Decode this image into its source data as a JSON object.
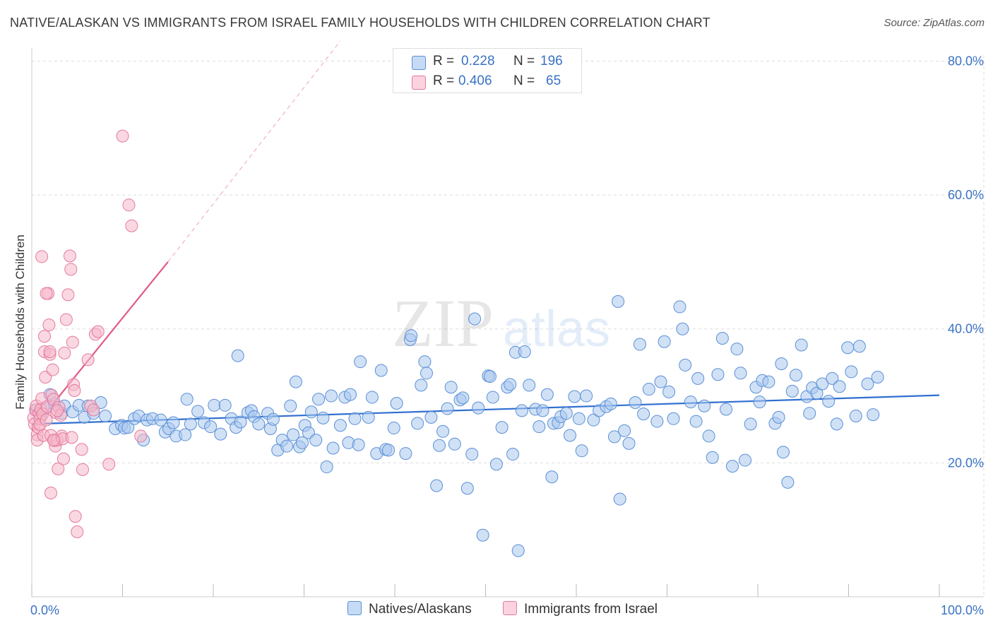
{
  "title": "NATIVE/ALASKAN VS IMMIGRANTS FROM ISRAEL FAMILY HOUSEHOLDS WITH CHILDREN CORRELATION CHART",
  "source": "Source: ZipAtlas.com",
  "watermark": {
    "zip": "ZIP",
    "atlas": "atlas"
  },
  "legend": {
    "r_label": "R =",
    "n_label": "N =",
    "series": [
      {
        "name": "Natives/Alaskans",
        "r": "0.228",
        "n": "196"
      },
      {
        "name": "Immigrants from Israel",
        "r": "0.406",
        "n": "65"
      }
    ]
  },
  "colors": {
    "blue_fill": "#aac8ee",
    "blue_stroke": "#5b8fd6",
    "blue_line": "#2f6fd0",
    "pink_fill": "#f5b8cb",
    "pink_stroke": "#e47a9c",
    "pink_line": "#e05a88",
    "axis_text": "#3a72c4",
    "grid": "#dddddd"
  },
  "chart_data": {
    "type": "scatter",
    "title": "NATIVE/ALASKAN VS IMMIGRANTS FROM ISRAEL FAMILY HOUSEHOLDS WITH CHILDREN CORRELATION CHART",
    "xlabel": "",
    "ylabel": "Family Households with Children",
    "xlim": [
      0,
      100
    ],
    "ylim": [
      0,
      83
    ],
    "x_tick_labels": [
      {
        "v": 0,
        "label": "0.0%"
      },
      {
        "v": 100,
        "label": "100.0%"
      }
    ],
    "y_tick_labels": [
      {
        "v": 20,
        "label": "20.0%"
      },
      {
        "v": 40,
        "label": "40.0%"
      },
      {
        "v": 60,
        "label": "60.0%"
      },
      {
        "v": 80,
        "label": "80.0%"
      }
    ],
    "series": [
      {
        "name": "Natives/Alaskans",
        "trend": {
          "x0": 0,
          "y0": 25.8,
          "x1": 100,
          "y1": 30.1
        },
        "points": [
          [
            0.5,
            27.9
          ],
          [
            1.0,
            26.9
          ],
          [
            1.5,
            28.2
          ],
          [
            2.0,
            30.2
          ],
          [
            2.5,
            28.8
          ],
          [
            3.3,
            27.4
          ],
          [
            3.6,
            28.5
          ],
          [
            4.5,
            27.6
          ],
          [
            5.2,
            28.6
          ],
          [
            5.8,
            26.8
          ],
          [
            6.2,
            28.5
          ],
          [
            6.8,
            27.4
          ],
          [
            7.6,
            29.0
          ],
          [
            8.1,
            27.0
          ],
          [
            9.2,
            25.1
          ],
          [
            9.9,
            25.6
          ],
          [
            10.2,
            25.2
          ],
          [
            10.6,
            25.3
          ],
          [
            11.3,
            26.6
          ],
          [
            11.8,
            27.0
          ],
          [
            12.3,
            23.4
          ],
          [
            12.7,
            26.4
          ],
          [
            13.3,
            26.6
          ],
          [
            14.2,
            26.4
          ],
          [
            14.7,
            24.6
          ],
          [
            15.1,
            25.1
          ],
          [
            15.6,
            26.0
          ],
          [
            15.9,
            24.0
          ],
          [
            16.9,
            24.2
          ],
          [
            17.1,
            29.5
          ],
          [
            17.5,
            25.8
          ],
          [
            18.3,
            27.7
          ],
          [
            19.0,
            26.0
          ],
          [
            19.7,
            25.4
          ],
          [
            20.1,
            28.6
          ],
          [
            20.8,
            24.3
          ],
          [
            21.3,
            28.6
          ],
          [
            22.0,
            26.6
          ],
          [
            22.5,
            25.3
          ],
          [
            22.7,
            36.0
          ],
          [
            23.0,
            26.1
          ],
          [
            23.8,
            27.5
          ],
          [
            24.2,
            27.8
          ],
          [
            24.5,
            26.9
          ],
          [
            25.0,
            25.8
          ],
          [
            26.0,
            27.4
          ],
          [
            26.3,
            25.1
          ],
          [
            26.6,
            26.5
          ],
          [
            27.1,
            21.9
          ],
          [
            27.6,
            23.4
          ],
          [
            28.1,
            22.5
          ],
          [
            28.5,
            28.5
          ],
          [
            28.8,
            24.2
          ],
          [
            29.1,
            32.1
          ],
          [
            29.5,
            22.4
          ],
          [
            29.8,
            23.0
          ],
          [
            30.1,
            25.6
          ],
          [
            30.5,
            24.5
          ],
          [
            30.8,
            27.6
          ],
          [
            31.3,
            23.4
          ],
          [
            31.6,
            29.5
          ],
          [
            32.1,
            26.7
          ],
          [
            32.5,
            19.4
          ],
          [
            33.0,
            30.0
          ],
          [
            33.2,
            22.2
          ],
          [
            34.0,
            25.6
          ],
          [
            34.5,
            29.8
          ],
          [
            34.9,
            23.0
          ],
          [
            35.1,
            30.2
          ],
          [
            35.6,
            26.6
          ],
          [
            36.0,
            22.7
          ],
          [
            36.2,
            35.1
          ],
          [
            37.1,
            26.8
          ],
          [
            37.5,
            29.8
          ],
          [
            38.0,
            21.4
          ],
          [
            38.5,
            33.8
          ],
          [
            39.0,
            22.0
          ],
          [
            39.3,
            21.9
          ],
          [
            39.9,
            25.2
          ],
          [
            40.2,
            28.9
          ],
          [
            41.2,
            21.4
          ],
          [
            41.7,
            38.4
          ],
          [
            41.8,
            39.0
          ],
          [
            42.5,
            25.9
          ],
          [
            42.9,
            31.6
          ],
          [
            43.3,
            35.1
          ],
          [
            43.5,
            33.4
          ],
          [
            44.0,
            26.8
          ],
          [
            44.6,
            16.6
          ],
          [
            44.9,
            22.6
          ],
          [
            45.3,
            24.7
          ],
          [
            45.8,
            28.1
          ],
          [
            46.2,
            31.3
          ],
          [
            46.6,
            22.8
          ],
          [
            47.2,
            29.4
          ],
          [
            47.5,
            29.7
          ],
          [
            48.0,
            16.2
          ],
          [
            48.5,
            21.3
          ],
          [
            48.8,
            41.5
          ],
          [
            49.2,
            28.2
          ],
          [
            49.7,
            9.2
          ],
          [
            50.3,
            33.0
          ],
          [
            50.5,
            32.9
          ],
          [
            50.8,
            29.8
          ],
          [
            51.2,
            19.8
          ],
          [
            51.8,
            25.3
          ],
          [
            52.4,
            31.3
          ],
          [
            52.7,
            31.7
          ],
          [
            53.0,
            21.3
          ],
          [
            53.3,
            36.5
          ],
          [
            53.6,
            6.9
          ],
          [
            54.0,
            27.8
          ],
          [
            54.3,
            36.6
          ],
          [
            54.8,
            31.6
          ],
          [
            55.5,
            28.0
          ],
          [
            55.9,
            25.4
          ],
          [
            56.3,
            27.8
          ],
          [
            56.8,
            30.2
          ],
          [
            57.3,
            17.9
          ],
          [
            57.5,
            25.9
          ],
          [
            58.0,
            26.0
          ],
          [
            58.3,
            26.9
          ],
          [
            58.9,
            27.4
          ],
          [
            59.3,
            24.1
          ],
          [
            59.8,
            29.9
          ],
          [
            60.3,
            26.6
          ],
          [
            60.6,
            21.8
          ],
          [
            61.1,
            30.0
          ],
          [
            61.9,
            26.4
          ],
          [
            62.5,
            27.8
          ],
          [
            63.3,
            28.4
          ],
          [
            63.8,
            28.8
          ],
          [
            64.2,
            23.9
          ],
          [
            64.6,
            44.1
          ],
          [
            64.8,
            14.6
          ],
          [
            65.3,
            24.8
          ],
          [
            65.8,
            22.9
          ],
          [
            66.5,
            29.0
          ],
          [
            67.0,
            37.7
          ],
          [
            67.4,
            27.3
          ],
          [
            68.0,
            31.0
          ],
          [
            68.9,
            26.2
          ],
          [
            69.3,
            32.1
          ],
          [
            69.7,
            38.1
          ],
          [
            70.2,
            30.6
          ],
          [
            70.7,
            26.6
          ],
          [
            71.4,
            43.3
          ],
          [
            71.7,
            40.0
          ],
          [
            72.0,
            34.6
          ],
          [
            72.6,
            29.1
          ],
          [
            73.2,
            26.2
          ],
          [
            73.4,
            32.6
          ],
          [
            74.1,
            28.5
          ],
          [
            74.6,
            24.0
          ],
          [
            75.0,
            20.8
          ],
          [
            75.6,
            33.2
          ],
          [
            76.1,
            38.6
          ],
          [
            76.5,
            28.0
          ],
          [
            77.2,
            19.5
          ],
          [
            77.7,
            37.0
          ],
          [
            78.1,
            33.4
          ],
          [
            78.6,
            20.4
          ],
          [
            79.2,
            25.8
          ],
          [
            79.8,
            31.3
          ],
          [
            80.2,
            29.1
          ],
          [
            80.5,
            32.3
          ],
          [
            81.2,
            32.1
          ],
          [
            81.9,
            25.9
          ],
          [
            82.3,
            26.8
          ],
          [
            82.8,
            21.6
          ],
          [
            82.6,
            34.8
          ],
          [
            83.3,
            17.1
          ],
          [
            83.8,
            30.7
          ],
          [
            84.2,
            33.1
          ],
          [
            84.8,
            37.6
          ],
          [
            85.4,
            29.9
          ],
          [
            85.7,
            27.4
          ],
          [
            86.0,
            31.2
          ],
          [
            86.5,
            30.4
          ],
          [
            87.1,
            31.8
          ],
          [
            87.8,
            29.2
          ],
          [
            88.2,
            32.6
          ],
          [
            88.7,
            25.8
          ],
          [
            89.0,
            31.4
          ],
          [
            89.9,
            37.2
          ],
          [
            90.3,
            33.6
          ],
          [
            90.8,
            27.0
          ],
          [
            91.2,
            37.4
          ],
          [
            92.1,
            31.8
          ],
          [
            92.7,
            27.2
          ],
          [
            93.2,
            32.8
          ]
        ]
      },
      {
        "name": "Immigrants from Israel",
        "trend": {
          "x0": 0,
          "y0": 24.9,
          "x1": 15,
          "y1": 50.0
        },
        "trend_extension": {
          "x0": 15,
          "y0": 50.0,
          "x1": 34,
          "y1": 83.0
        },
        "points": [
          [
            0.2,
            26.7
          ],
          [
            0.3,
            25.8
          ],
          [
            0.4,
            27.9
          ],
          [
            0.5,
            28.5
          ],
          [
            0.6,
            24.2
          ],
          [
            0.6,
            23.4
          ],
          [
            0.7,
            25.3
          ],
          [
            0.8,
            27.4
          ],
          [
            0.9,
            26.6
          ],
          [
            0.9,
            25.7
          ],
          [
            1.0,
            28.0
          ],
          [
            1.1,
            29.6
          ],
          [
            1.2,
            27.3
          ],
          [
            1.3,
            24.1
          ],
          [
            1.4,
            38.9
          ],
          [
            1.4,
            36.6
          ],
          [
            1.5,
            32.8
          ],
          [
            1.6,
            26.4
          ],
          [
            1.7,
            28.4
          ],
          [
            1.8,
            45.3
          ],
          [
            1.9,
            40.6
          ],
          [
            2.0,
            36.2
          ],
          [
            2.1,
            24.1
          ],
          [
            2.1,
            15.5
          ],
          [
            2.2,
            30.1
          ],
          [
            2.3,
            33.9
          ],
          [
            2.4,
            29.5
          ],
          [
            2.5,
            23.3
          ],
          [
            2.6,
            22.5
          ],
          [
            2.7,
            27.5
          ],
          [
            2.8,
            23.4
          ],
          [
            2.9,
            19.1
          ],
          [
            3.0,
            28.3
          ],
          [
            3.2,
            27.1
          ],
          [
            3.3,
            24.0
          ],
          [
            3.4,
            23.6
          ],
          [
            3.5,
            20.6
          ],
          [
            3.6,
            36.4
          ],
          [
            3.8,
            41.4
          ],
          [
            4.0,
            45.1
          ],
          [
            4.2,
            50.9
          ],
          [
            4.3,
            48.9
          ],
          [
            4.4,
            23.8
          ],
          [
            4.5,
            38.0
          ],
          [
            4.6,
            31.7
          ],
          [
            4.7,
            30.8
          ],
          [
            4.8,
            12.0
          ],
          [
            5.0,
            9.7
          ],
          [
            1.1,
            50.8
          ],
          [
            1.6,
            45.3
          ],
          [
            2.0,
            36.6
          ],
          [
            2.4,
            23.4
          ],
          [
            2.8,
            27.8
          ],
          [
            5.5,
            22.0
          ],
          [
            5.6,
            19.0
          ],
          [
            6.2,
            35.4
          ],
          [
            6.5,
            28.5
          ],
          [
            6.8,
            27.9
          ],
          [
            7.0,
            39.2
          ],
          [
            7.3,
            39.6
          ],
          [
            8.5,
            19.8
          ],
          [
            10.0,
            68.8
          ],
          [
            10.7,
            58.5
          ],
          [
            11.0,
            55.4
          ],
          [
            12.0,
            24.0
          ]
        ]
      }
    ]
  }
}
